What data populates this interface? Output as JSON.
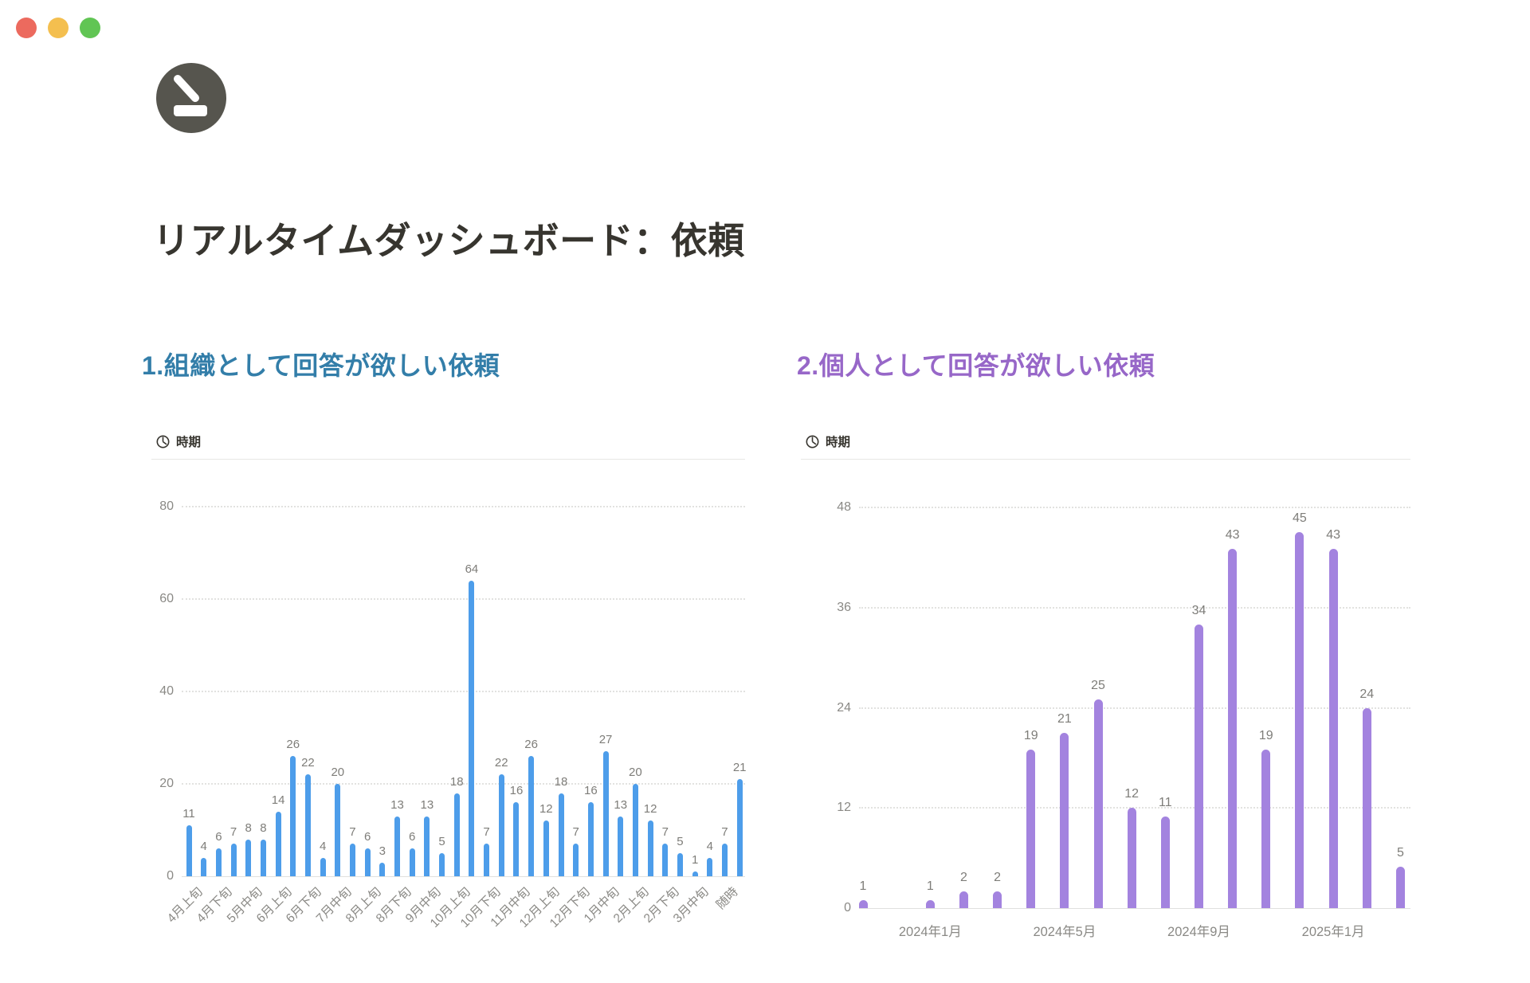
{
  "window": {
    "controls": [
      {
        "name": "close",
        "color": "#EC6A5E"
      },
      {
        "name": "minimize",
        "color": "#F4BF4F"
      },
      {
        "name": "zoom",
        "color": "#61C554"
      }
    ]
  },
  "page": {
    "icon": "gauge-icon",
    "icon_color": "#56554E",
    "title": "リアルタイムダッシュボード：依頼"
  },
  "sections": [
    {
      "heading": "1.組織として回答が欲しい依頼",
      "heading_color": "#337EA9",
      "field": {
        "icon": "clock-icon",
        "label": "時期"
      }
    },
    {
      "heading": "2.個人として回答が欲しい依頼",
      "heading_color": "#9767C8",
      "field": {
        "icon": "clock-icon",
        "label": "時期"
      }
    }
  ],
  "chart_data": [
    {
      "type": "bar",
      "title": "1.組織として回答が欲しい依頼",
      "field_label": "時期",
      "values": [
        11,
        4,
        6,
        7,
        8,
        8,
        14,
        26,
        22,
        4,
        20,
        7,
        6,
        3,
        13,
        6,
        13,
        5,
        18,
        64,
        7,
        22,
        16,
        26,
        12,
        18,
        7,
        16,
        27,
        13,
        20,
        12,
        7,
        5,
        1,
        4,
        7,
        21
      ],
      "tick_labels": [
        "4月上旬",
        "4月下旬",
        "5月中旬",
        "6月上旬",
        "6月下旬",
        "7月中旬",
        "8月上旬",
        "8月下旬",
        "9月中旬",
        "10月上旬",
        "10月下旬",
        "11月中旬",
        "12月上旬",
        "12月下旬",
        "1月中旬",
        "2月上旬",
        "2月下旬",
        "3月中旬",
        "随時"
      ],
      "tick_positions": [
        0,
        2,
        4,
        6,
        8,
        10,
        12,
        14,
        16,
        18,
        20,
        22,
        24,
        26,
        28,
        30,
        32,
        34,
        36
      ],
      "y_ticks": [
        0,
        20,
        40,
        60,
        80
      ],
      "ylim": [
        0,
        80
      ],
      "bar_color": "#4D9DEA",
      "label_rotation": -45,
      "grid": "dotted",
      "legend": "none"
    },
    {
      "type": "bar",
      "title": "2.個人として回答が欲しい依頼",
      "field_label": "時期",
      "values": [
        1,
        0,
        1,
        2,
        2,
        19,
        21,
        25,
        12,
        11,
        34,
        43,
        19,
        45,
        43,
        24,
        5
      ],
      "tick_labels": [
        "2024年1月",
        "2024年5月",
        "2024年9月",
        "2025年1月"
      ],
      "tick_positions": [
        2,
        6,
        10,
        14
      ],
      "y_ticks": [
        0,
        12,
        24,
        36,
        48
      ],
      "ylim": [
        0,
        48
      ],
      "bar_color": "#A383DF",
      "label_rotation": 0,
      "grid": "dotted",
      "legend": "none"
    }
  ]
}
